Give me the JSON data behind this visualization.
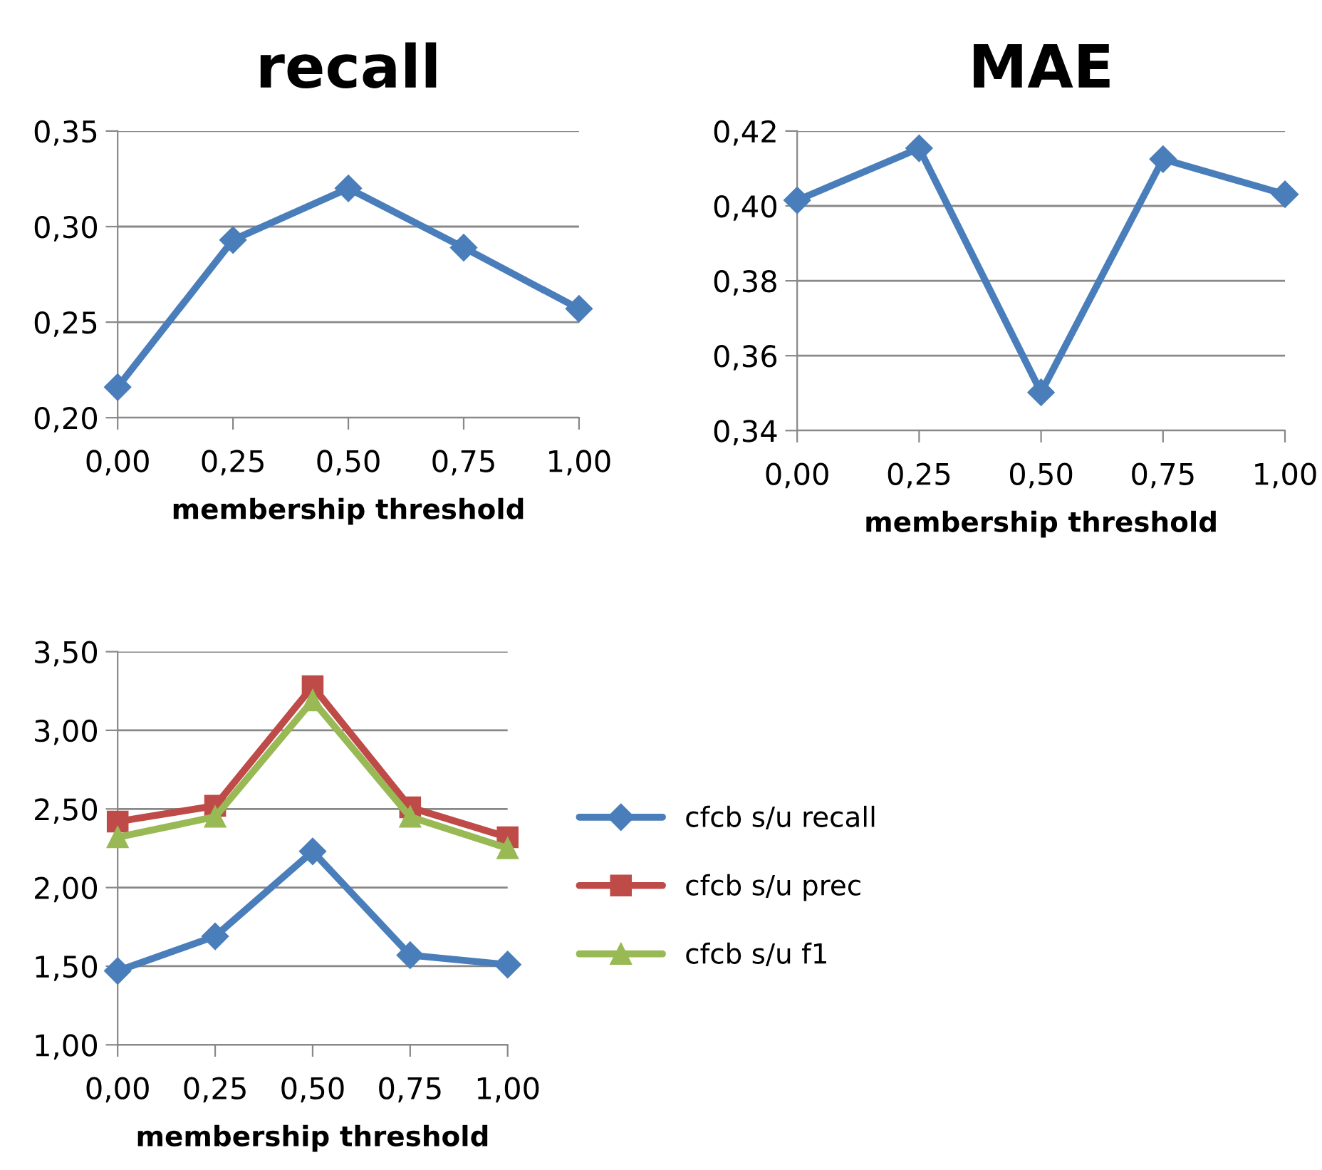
{
  "chart_data": [
    {
      "type": "line",
      "title": "recall",
      "xlabel": "membership threshold",
      "x": [
        0,
        0.25,
        0.5,
        0.75,
        1
      ],
      "series": [
        {
          "color": "#4a7ebb",
          "marker": "diamond",
          "values": [
            0.216,
            0.293,
            0.32,
            0.289,
            0.257
          ]
        }
      ],
      "xlim": [
        0,
        1
      ],
      "xticks": [
        {
          "value": 0,
          "label": "0,00"
        },
        {
          "value": 0.25,
          "label": "0,25"
        },
        {
          "value": 0.5,
          "label": "0,50"
        },
        {
          "value": 0.75,
          "label": "0,75"
        },
        {
          "value": 1,
          "label": "1,00"
        }
      ],
      "ylim": [
        0.2,
        0.35
      ],
      "yticks": [
        {
          "value": 0.2,
          "label": "0,20"
        },
        {
          "value": 0.25,
          "label": "0,25"
        },
        {
          "value": 0.3,
          "label": "0,30"
        },
        {
          "value": 0.35,
          "label": "0,35"
        }
      ],
      "grid": "y",
      "legend": false
    },
    {
      "type": "line",
      "title": "MAE",
      "xlabel": "membership threshold",
      "x": [
        0,
        0.25,
        0.5,
        0.75,
        1
      ],
      "series": [
        {
          "color": "#4a7ebb",
          "marker": "diamond",
          "values": [
            0.4015,
            0.4154,
            0.3502,
            0.4125,
            0.4031
          ]
        }
      ],
      "xlim": [
        0,
        1
      ],
      "xticks": [
        {
          "value": 0,
          "label": "0,00"
        },
        {
          "value": 0.25,
          "label": "0,25"
        },
        {
          "value": 0.5,
          "label": "0,50"
        },
        {
          "value": 0.75,
          "label": "0,75"
        },
        {
          "value": 1,
          "label": "1,00"
        }
      ],
      "ylim": [
        0.34,
        0.42
      ],
      "yticks": [
        {
          "value": 0.34,
          "label": "0,34"
        },
        {
          "value": 0.36,
          "label": "0,36"
        },
        {
          "value": 0.38,
          "label": "0,38"
        },
        {
          "value": 0.4,
          "label": "0,40"
        },
        {
          "value": 0.42,
          "label": "0,42"
        }
      ],
      "grid": "y",
      "legend": false
    },
    {
      "type": "line",
      "xlabel": "membership threshold",
      "x": [
        0,
        0.25,
        0.5,
        0.75,
        1
      ],
      "series": [
        {
          "name": "cfcb s/u recall",
          "color": "#4a7ebb",
          "marker": "diamond",
          "values": [
            1.47,
            1.69,
            2.23,
            1.57,
            1.51
          ]
        },
        {
          "name": "cfcb s/u prec",
          "color": "#be4b48",
          "marker": "square",
          "values": [
            2.42,
            2.52,
            3.28,
            2.51,
            2.32
          ]
        },
        {
          "name": "cfcb s/u f1",
          "color": "#98b954",
          "marker": "triangle",
          "values": [
            2.32,
            2.45,
            3.19,
            2.45,
            2.25
          ]
        }
      ],
      "xlim": [
        0,
        1
      ],
      "xticks": [
        {
          "value": 0,
          "label": "0,00"
        },
        {
          "value": 0.25,
          "label": "0,25"
        },
        {
          "value": 0.5,
          "label": "0,50"
        },
        {
          "value": 0.75,
          "label": "0,75"
        },
        {
          "value": 1,
          "label": "1,00"
        }
      ],
      "ylim": [
        1.0,
        3.5
      ],
      "yticks": [
        {
          "value": 1.0,
          "label": "1,00"
        },
        {
          "value": 1.5,
          "label": "1,50"
        },
        {
          "value": 2.0,
          "label": "2,00"
        },
        {
          "value": 2.5,
          "label": "2,50"
        },
        {
          "value": 3.0,
          "label": "3,00"
        },
        {
          "value": 3.5,
          "label": "3,50"
        }
      ],
      "grid": "y",
      "legend": "right"
    }
  ]
}
